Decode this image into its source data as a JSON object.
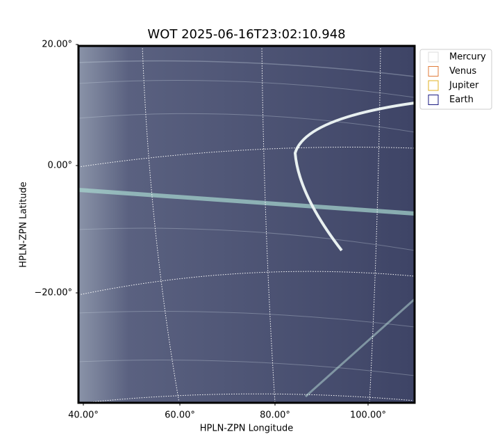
{
  "title": "WOT 2025-06-16T23:02:10.948",
  "axes": {
    "x_label": "HPLN-ZPN Longitude",
    "y_label": "HPLN-ZPN Latitude",
    "x_ticks": [
      "40.00°",
      "60.00°",
      "80.00°",
      "100.00°"
    ],
    "y_ticks": [
      "20.00°",
      "0.00°",
      "−20.00°"
    ]
  },
  "legend": [
    {
      "name": "Mercury",
      "color": "#dddddd"
    },
    {
      "name": "Venus",
      "color": "#e07b39"
    },
    {
      "name": "Jupiter",
      "color": "#e0b020"
    },
    {
      "name": "Earth",
      "color": "#1a1a80"
    }
  ]
}
